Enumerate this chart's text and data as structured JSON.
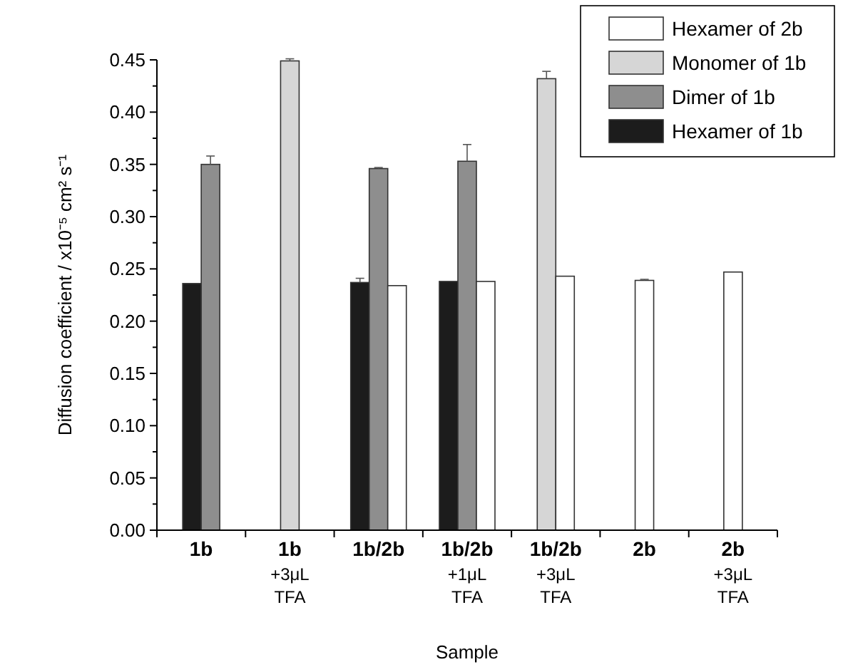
{
  "chart_data": {
    "type": "bar",
    "xlabel": "Sample",
    "ylabel": "Diffusion coefficient / x10⁻⁵ cm² s⁻¹",
    "categories": [
      "1b",
      "1b\n+3μL\nTFA",
      "1b/2b",
      "1b/2b\n+1μL\nTFA",
      "1b/2b\n+3μL\nTFA",
      "2b",
      "2b\n+3μL\nTFA"
    ],
    "series": [
      {
        "name": "Hexamer of 1b",
        "color": "#1c1c1c",
        "values": [
          0.236,
          null,
          0.237,
          0.238,
          null,
          null,
          null
        ],
        "errors": [
          null,
          null,
          0.004,
          null,
          null,
          null,
          null
        ]
      },
      {
        "name": "Dimer of 1b",
        "color": "#8e8e8e",
        "values": [
          0.35,
          null,
          0.346,
          0.353,
          null,
          null,
          null
        ],
        "errors": [
          0.008,
          null,
          0.001,
          0.016,
          null,
          null,
          null
        ]
      },
      {
        "name": "Monomer of 1b",
        "color": "#d6d6d6",
        "values": [
          null,
          0.449,
          null,
          null,
          0.432,
          null,
          null
        ],
        "errors": [
          null,
          0.002,
          null,
          null,
          0.007,
          null,
          null
        ]
      },
      {
        "name": "Hexamer of 2b",
        "color": "#ffffff",
        "values": [
          null,
          null,
          0.234,
          0.238,
          0.243,
          0.239,
          0.247
        ],
        "errors": [
          null,
          null,
          null,
          null,
          null,
          0.001,
          null
        ]
      }
    ],
    "ylim": [
      0,
      0.45
    ],
    "yticks": [
      {
        "value": 0,
        "label": "0.00"
      },
      {
        "value": 0.05,
        "label": "0.05"
      },
      {
        "value": 0.1,
        "label": "0.10"
      },
      {
        "value": 0.15,
        "label": "0.15"
      },
      {
        "value": 0.2,
        "label": "0.20"
      },
      {
        "value": 0.25,
        "label": "0.25"
      },
      {
        "value": 0.3,
        "label": "0.30"
      },
      {
        "value": 0.35,
        "label": "0.35"
      },
      {
        "value": 0.4,
        "label": "0.40"
      },
      {
        "value": 0.45,
        "label": "0.45"
      }
    ],
    "legend": "top right"
  }
}
